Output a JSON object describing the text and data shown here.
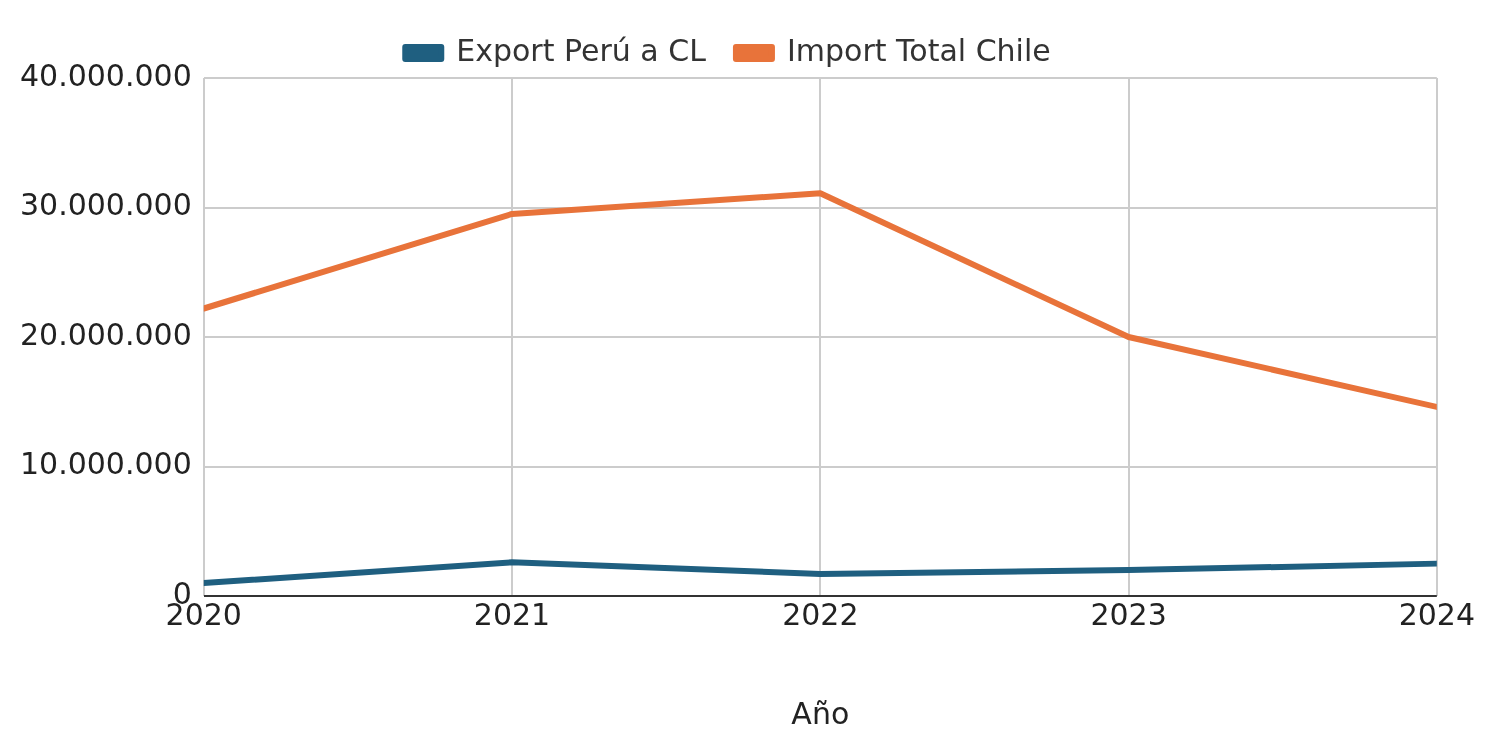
{
  "chart_data": {
    "type": "line",
    "xlabel": "Año",
    "x": [
      2020,
      2021,
      2022,
      2023,
      2024
    ],
    "series": [
      {
        "name": "Export Perú a CL",
        "color": "#1f5f80",
        "values": [
          1000000,
          2600000,
          1700000,
          2000000,
          2500000
        ]
      },
      {
        "name": "Import Total Chile",
        "color": "#e8733a",
        "values": [
          22200000,
          29500000,
          31100000,
          20000000,
          14600000
        ]
      }
    ],
    "xlim": [
      2020,
      2024
    ],
    "xticks": [
      2020,
      2021,
      2022,
      2023,
      2024
    ],
    "ylim": [
      0,
      40000000
    ],
    "yticks": [
      {
        "value": 0,
        "label": "0"
      },
      {
        "value": 10000000,
        "label": "10.000.000"
      },
      {
        "value": 20000000,
        "label": "20.000.000"
      },
      {
        "value": 30000000,
        "label": "30.000.000"
      },
      {
        "value": 40000000,
        "label": "40.000.000"
      }
    ],
    "grid": true,
    "legend": "top",
    "marker": "none",
    "line_style": "solid"
  }
}
